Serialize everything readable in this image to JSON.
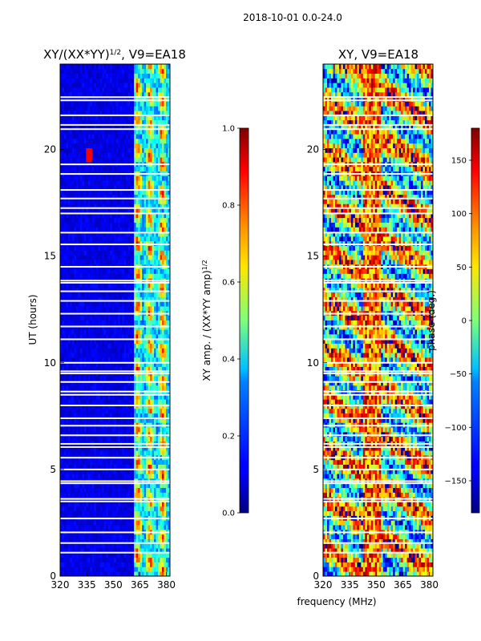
{
  "suptitle": "2018-10-01 0.0-24.0",
  "xlabel_shared": "frequency (MHz)",
  "chart_data": [
    {
      "type": "heatmap",
      "title_main": "XY/(XX*YY)",
      "title_sup": "1/2",
      "title_rest": ", V9=EA18",
      "xlabel": "frequency (MHz)",
      "ylabel": "UT (hours)",
      "xlim": [
        320,
        382
      ],
      "ylim": [
        0,
        24
      ],
      "xticks": [
        320,
        335,
        350,
        365,
        380
      ],
      "yticks": [
        0,
        5,
        10,
        15,
        20
      ],
      "value": "XY amplitude normalized by (XX*YY amp)^1/2",
      "colorbar": {
        "label_main": "XY amp. / (XX*YY amp)",
        "label_sup": "1/2",
        "range": [
          0.0,
          1.0
        ],
        "ticks": [
          "0.0",
          "0.2",
          "0.4",
          "0.6",
          "0.8",
          "1.0"
        ]
      }
    },
    {
      "type": "heatmap",
      "title": "XY, V9=EA18",
      "xlabel": "frequency (MHz)",
      "ylabel": "",
      "xlim": [
        320,
        382
      ],
      "ylim": [
        0,
        24
      ],
      "xticks": [
        320,
        335,
        350,
        365,
        380
      ],
      "yticks": [
        0,
        5,
        10,
        15,
        20
      ],
      "value": "XY phase (deg)",
      "colorbar": {
        "label": "phase (deg.)",
        "range": [
          -180,
          180
        ],
        "ticks": [
          "150",
          "100",
          "50",
          "0",
          "−50",
          "−100",
          "−150"
        ]
      }
    }
  ]
}
